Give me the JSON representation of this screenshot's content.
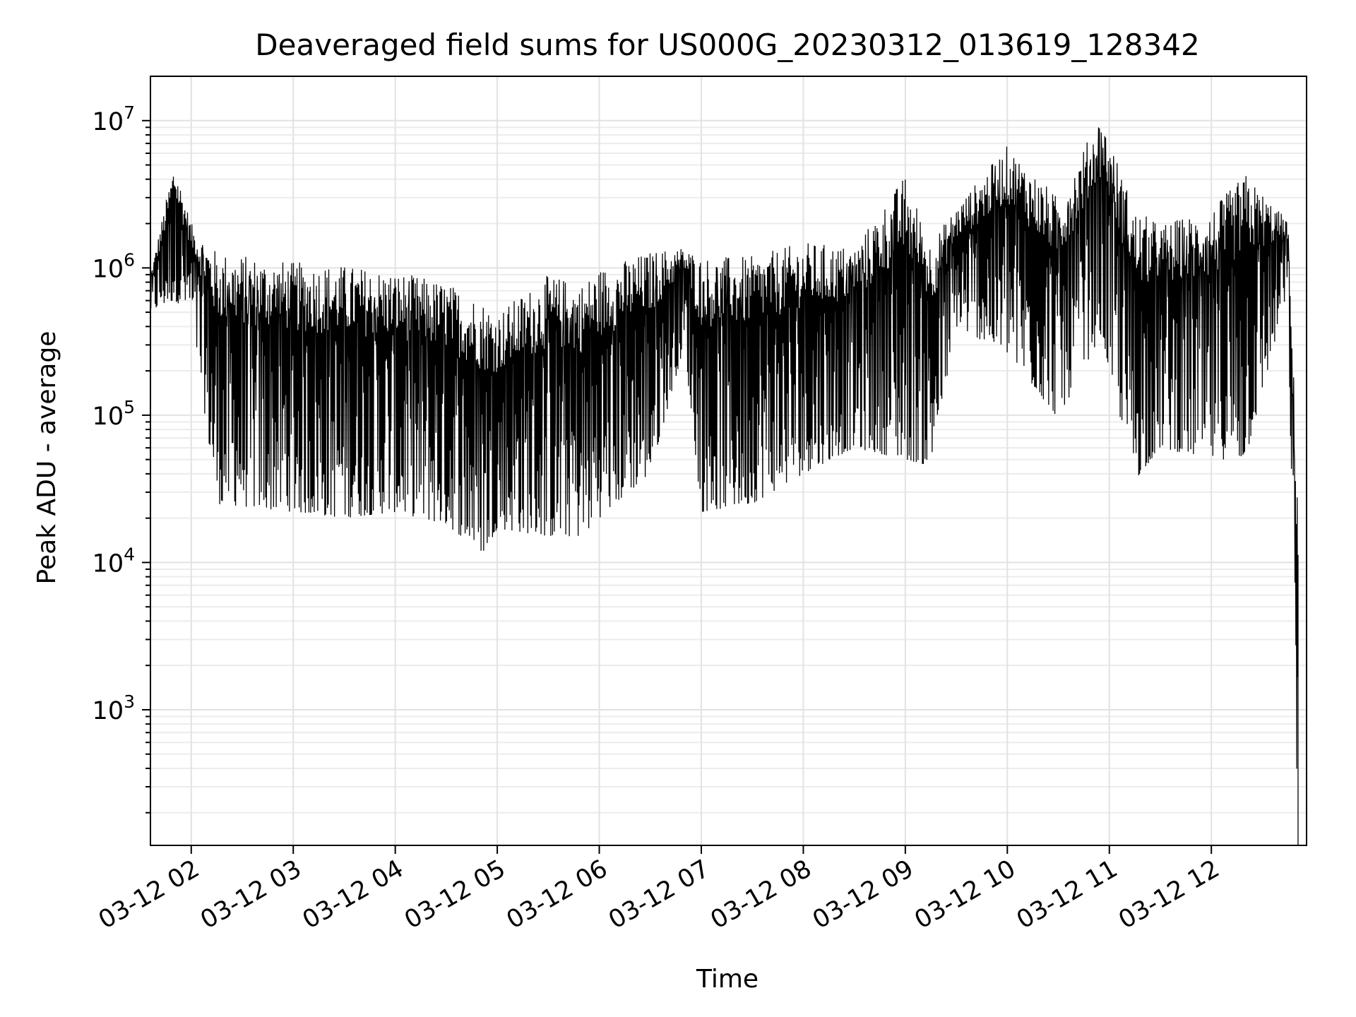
{
  "chart_data": {
    "type": "line",
    "title": "Deaveraged field sums for US000G_20230312_013619_128342",
    "xlabel": "Time",
    "ylabel": "Peak ADU - average",
    "yscale": "log",
    "ylim": [
      120,
      20000000
    ],
    "xlim": [
      "2023-03-12 01:36",
      "2023-03-12 12:56"
    ],
    "grid": true,
    "line_color": "#000000",
    "grid_color": "#e2e2e2",
    "x_ticks": [
      {
        "value": "2023-03-12 02:00",
        "label": "03-12 02"
      },
      {
        "value": "2023-03-12 03:00",
        "label": "03-12 03"
      },
      {
        "value": "2023-03-12 04:00",
        "label": "03-12 04"
      },
      {
        "value": "2023-03-12 05:00",
        "label": "03-12 05"
      },
      {
        "value": "2023-03-12 06:00",
        "label": "03-12 06"
      },
      {
        "value": "2023-03-12 07:00",
        "label": "03-12 07"
      },
      {
        "value": "2023-03-12 08:00",
        "label": "03-12 08"
      },
      {
        "value": "2023-03-12 09:00",
        "label": "03-12 09"
      },
      {
        "value": "2023-03-12 10:00",
        "label": "03-12 10"
      },
      {
        "value": "2023-03-12 11:00",
        "label": "03-12 11"
      },
      {
        "value": "2023-03-12 12:00",
        "label": "03-12 12"
      }
    ],
    "y_ticks": [
      {
        "value": 1000,
        "base": "10",
        "exp": "3"
      },
      {
        "value": 10000,
        "base": "10",
        "exp": "4"
      },
      {
        "value": 100000,
        "base": "10",
        "exp": "5"
      },
      {
        "value": 1000000,
        "base": "10",
        "exp": "6"
      },
      {
        "value": 10000000,
        "base": "10",
        "exp": "7"
      }
    ],
    "series": [
      {
        "envelope_description_points": [
          {
            "x": "2023-03-12 01:36",
            "upper": 900000,
            "lower": 500000
          },
          {
            "x": "2023-03-12 01:50",
            "upper": 5300000,
            "lower": 600000
          },
          {
            "x": "2023-03-12 02:00",
            "upper": 2000000,
            "lower": 500000
          },
          {
            "x": "2023-03-12 02:15",
            "upper": 1300000,
            "lower": 25000
          },
          {
            "x": "2023-03-12 03:00",
            "upper": 1100000,
            "lower": 22000
          },
          {
            "x": "2023-03-12 03:30",
            "upper": 1050000,
            "lower": 20000
          },
          {
            "x": "2023-03-12 04:00",
            "upper": 950000,
            "lower": 22000
          },
          {
            "x": "2023-03-12 04:30",
            "upper": 800000,
            "lower": 18000
          },
          {
            "x": "2023-03-12 04:52",
            "upper": 600000,
            "lower": 11500
          },
          {
            "x": "2023-03-12 05:00",
            "upper": 500000,
            "lower": 17000
          },
          {
            "x": "2023-03-12 05:30",
            "upper": 900000,
            "lower": 15000
          },
          {
            "x": "2023-03-12 05:50",
            "upper": 800000,
            "lower": 15000
          },
          {
            "x": "2023-03-12 06:00",
            "upper": 1000000,
            "lower": 20000
          },
          {
            "x": "2023-03-12 06:30",
            "upper": 1300000,
            "lower": 40000
          },
          {
            "x": "2023-03-12 06:50",
            "upper": 1400000,
            "lower": 300000
          },
          {
            "x": "2023-03-12 07:00",
            "upper": 1200000,
            "lower": 22000
          },
          {
            "x": "2023-03-12 07:30",
            "upper": 1200000,
            "lower": 25000
          },
          {
            "x": "2023-03-12 08:00",
            "upper": 1500000,
            "lower": 40000
          },
          {
            "x": "2023-03-12 08:30",
            "upper": 1400000,
            "lower": 60000
          },
          {
            "x": "2023-03-12 09:00",
            "upper": 4300000,
            "lower": 50000
          },
          {
            "x": "2023-03-12 09:15",
            "upper": 1500000,
            "lower": 45000
          },
          {
            "x": "2023-03-12 09:30",
            "upper": 2600000,
            "lower": 400000
          },
          {
            "x": "2023-03-12 10:00",
            "upper": 6800000,
            "lower": 260000
          },
          {
            "x": "2023-03-12 10:30",
            "upper": 3000000,
            "lower": 95000
          },
          {
            "x": "2023-03-12 10:55",
            "upper": 11000000,
            "lower": 350000
          },
          {
            "x": "2023-03-12 11:15",
            "upper": 2500000,
            "lower": 36000
          },
          {
            "x": "2023-03-12 11:30",
            "upper": 2000000,
            "lower": 60000
          },
          {
            "x": "2023-03-12 12:00",
            "upper": 2500000,
            "lower": 50000
          },
          {
            "x": "2023-03-12 12:20",
            "upper": 4400000,
            "lower": 50000
          },
          {
            "x": "2023-03-12 12:45",
            "upper": 2100000,
            "lower": 700000
          },
          {
            "x": "2023-03-12 12:51",
            "upper": 30000,
            "lower": 120
          }
        ]
      }
    ]
  }
}
